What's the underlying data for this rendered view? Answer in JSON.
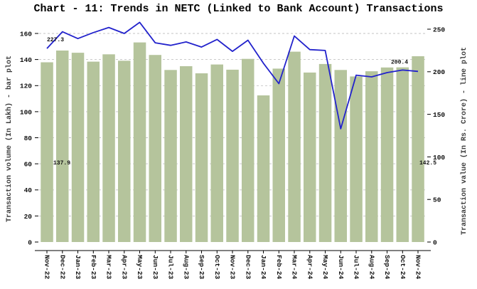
{
  "title": "Chart - 11: Trends in NETC (Linked to Bank Account) Transactions",
  "chart_data": {
    "type": "bar",
    "overlay": "line",
    "title": "Chart - 11: Trends in NETC (Linked to Bank Account) Transactions",
    "categories": [
      "Nov-22",
      "Dec-22",
      "Jan-23",
      "Feb-23",
      "Mar-23",
      "Apr-23",
      "May-23",
      "Jun-23",
      "Jul-23",
      "Aug-23",
      "Sep-23",
      "Oct-23",
      "Nov-23",
      "Dec-23",
      "Jan-24",
      "Feb-24",
      "Mar-24",
      "Apr-24",
      "May-24",
      "Jun-24",
      "Jul-24",
      "Aug-24",
      "Sep-24",
      "Oct-24",
      "Nov-24"
    ],
    "series": [
      {
        "name": "Transaction volume (In Lakh)",
        "type": "bar",
        "axis": "left",
        "color": "#b5c49c",
        "values": [
          137.9,
          146.9,
          145.2,
          138.4,
          144.0,
          139.1,
          153.1,
          143.5,
          132.0,
          134.9,
          129.4,
          136.2,
          132.2,
          140.5,
          112.5,
          133.0,
          146.0,
          130.0,
          136.6,
          132.0,
          127.0,
          131.0,
          133.9,
          134.0,
          142.5
        ]
      },
      {
        "name": "Transaction value (In Rs. Crore)",
        "type": "line",
        "axis": "right",
        "color": "#2222cc",
        "values": [
          227.3,
          247,
          239,
          246,
          252,
          245,
          258,
          234,
          231,
          235,
          229,
          238,
          224,
          237,
          210,
          186,
          242,
          226,
          225,
          133,
          196,
          194,
          199,
          202,
          200.4
        ]
      }
    ],
    "left_axis": {
      "label": "Transaction volume (In Lakh) - bar plot",
      "ticks": [
        0,
        20,
        40,
        60,
        80,
        100,
        120,
        140,
        160
      ],
      "range": [
        0,
        170
      ]
    },
    "right_axis": {
      "label": "Transaction value (In Rs. Crore) - line plot",
      "ticks": [
        0,
        50,
        100,
        150,
        200,
        250
      ],
      "range": [
        0,
        262
      ]
    },
    "annotations": [
      {
        "text": "227.3",
        "color": "#2222cc"
      },
      {
        "text": "200.4",
        "color": "#2222cc"
      },
      {
        "text": "137.9",
        "color": "#111111"
      },
      {
        "text": "142.5",
        "color": "#111111"
      }
    ],
    "grid": {
      "style": "dashed",
      "axis": "left"
    },
    "legend": "none"
  }
}
